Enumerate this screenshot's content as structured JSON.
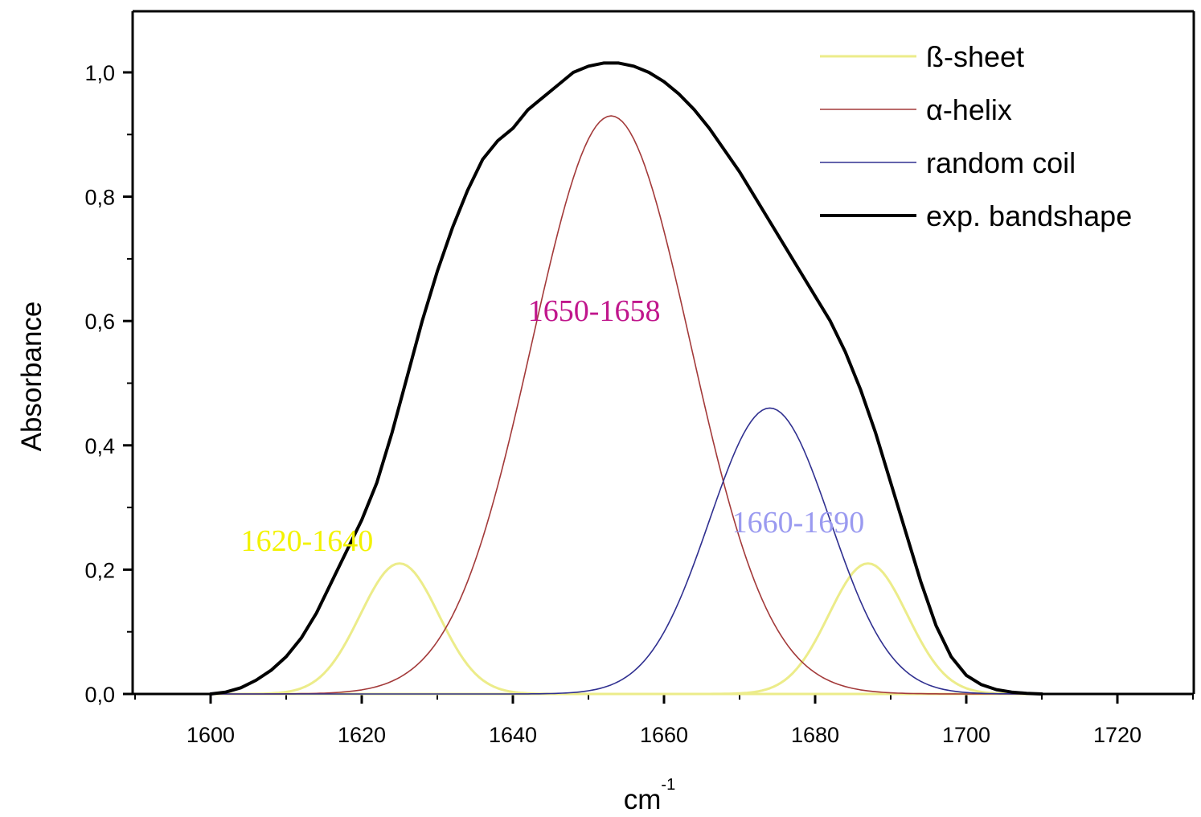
{
  "chart_data": {
    "type": "line",
    "title": "",
    "xlabel": "cm",
    "xlabel_superscript": "-1",
    "ylabel": "Absorbance",
    "xlim": [
      1590,
      1730
    ],
    "ylim": [
      0,
      1.1
    ],
    "x_ticks": [
      1600,
      1620,
      1640,
      1660,
      1680,
      1700,
      1720
    ],
    "x_tick_labels": [
      "1600",
      "1620",
      "1640",
      "1660",
      "1680",
      "1700",
      "1720"
    ],
    "y_ticks": [
      0,
      0.2,
      0.4,
      0.6,
      0.8,
      1.0
    ],
    "y_tick_labels": [
      "0,0",
      "0,2",
      "0,4",
      "0,6",
      "0,8",
      "1,0"
    ],
    "grid": false,
    "legend_position": "top-right",
    "series": [
      {
        "name": "ß-sheet",
        "color": "#ecec8a",
        "components": [
          {
            "center": 1625,
            "height": 0.21,
            "width": 5.2
          },
          {
            "center": 1687,
            "height": 0.21,
            "width": 5.2
          }
        ]
      },
      {
        "name": "α-helix",
        "color": "#a33a3a",
        "components": [
          {
            "center": 1653,
            "height": 0.93,
            "width": 10.5
          }
        ]
      },
      {
        "name": "random coil",
        "color": "#303090",
        "components": [
          {
            "center": 1674,
            "height": 0.46,
            "width": 8.0
          }
        ]
      },
      {
        "name": "exp. bandshape",
        "color": "#000000",
        "x": [
          1600,
          1602,
          1604,
          1606,
          1608,
          1610,
          1612,
          1614,
          1616,
          1618,
          1620,
          1622,
          1624,
          1626,
          1628,
          1630,
          1632,
          1634,
          1636,
          1638,
          1640,
          1642,
          1644,
          1646,
          1648,
          1650,
          1652,
          1654,
          1656,
          1658,
          1660,
          1662,
          1664,
          1666,
          1668,
          1670,
          1672,
          1674,
          1676,
          1678,
          1680,
          1682,
          1684,
          1686,
          1688,
          1690,
          1692,
          1694,
          1696,
          1698,
          1700,
          1702,
          1704,
          1706,
          1708,
          1710
        ],
        "y": [
          0.0,
          0.003,
          0.01,
          0.022,
          0.038,
          0.06,
          0.09,
          0.13,
          0.18,
          0.23,
          0.28,
          0.34,
          0.42,
          0.51,
          0.6,
          0.68,
          0.75,
          0.81,
          0.86,
          0.89,
          0.91,
          0.94,
          0.96,
          0.98,
          1.0,
          1.01,
          1.015,
          1.015,
          1.01,
          1.0,
          0.985,
          0.965,
          0.94,
          0.91,
          0.875,
          0.84,
          0.8,
          0.76,
          0.72,
          0.68,
          0.64,
          0.6,
          0.55,
          0.49,
          0.42,
          0.34,
          0.26,
          0.18,
          0.11,
          0.06,
          0.03,
          0.015,
          0.007,
          0.003,
          0.001,
          0.0
        ]
      }
    ],
    "annotations": [
      {
        "text": "1620-1640",
        "x": 1604,
        "y": 0.23,
        "color": "#f2f200"
      },
      {
        "text": "1650-1658",
        "x": 1642,
        "y": 0.6,
        "color": "#c0168c"
      },
      {
        "text": "1660-1690",
        "x": 1669,
        "y": 0.26,
        "color": "#9a9af0"
      }
    ]
  }
}
